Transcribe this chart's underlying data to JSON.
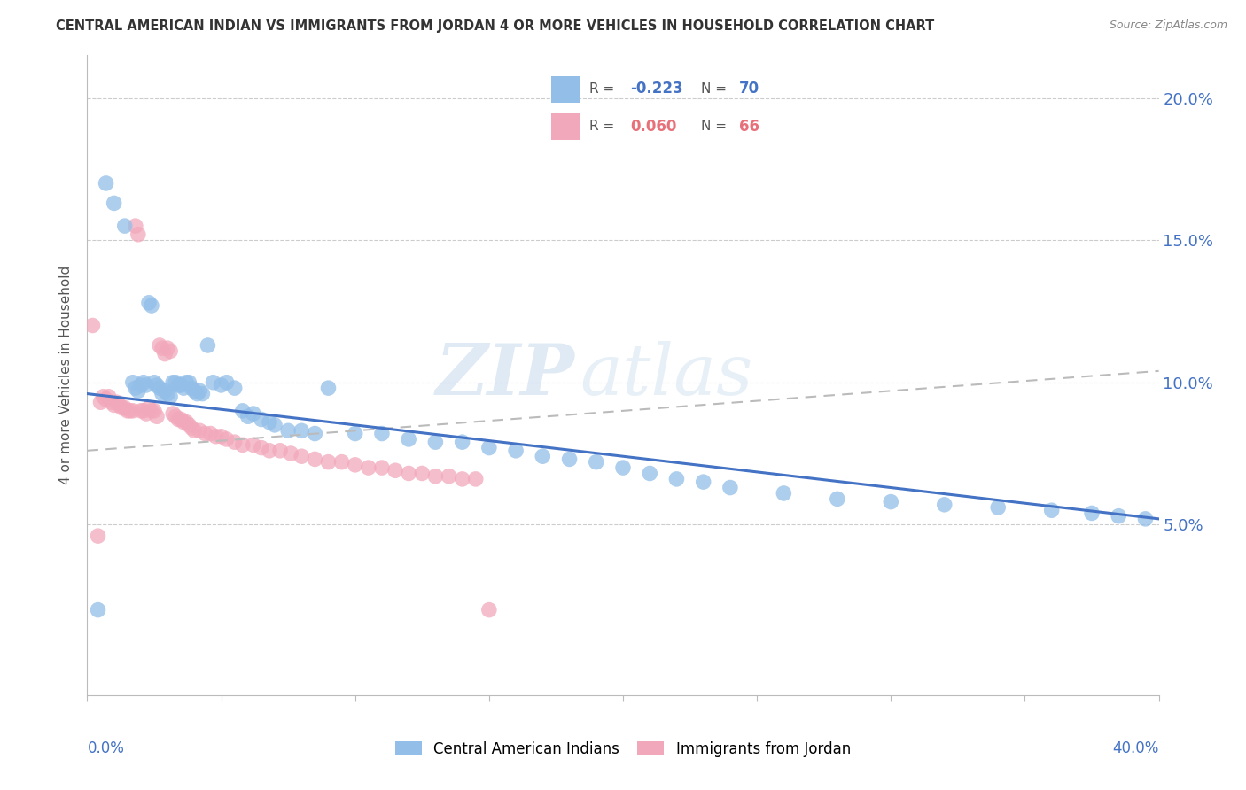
{
  "title": "CENTRAL AMERICAN INDIAN VS IMMIGRANTS FROM JORDAN 4 OR MORE VEHICLES IN HOUSEHOLD CORRELATION CHART",
  "source": "Source: ZipAtlas.com",
  "ylabel": "4 or more Vehicles in Household",
  "xlim": [
    0.0,
    0.4
  ],
  "ylim": [
    -0.01,
    0.215
  ],
  "yticks": [
    0.05,
    0.1,
    0.15,
    0.2
  ],
  "ytick_labels": [
    "5.0%",
    "10.0%",
    "15.0%",
    "20.0%"
  ],
  "xticks": [
    0.0,
    0.05,
    0.1,
    0.15,
    0.2,
    0.25,
    0.3,
    0.35,
    0.4
  ],
  "legend_label1": "Central American Indians",
  "legend_label2": "Immigrants from Jordan",
  "watermark": "ZIPatlas",
  "blue_color": "#92BEE8",
  "pink_color": "#F2A8BB",
  "blue_line_color": "#4472C4",
  "pink_line_color": "#E8707A",
  "gray_dash_color": "#BBBBBB",
  "blue_trend_x": [
    0.0,
    0.4
  ],
  "blue_trend_y": [
    0.096,
    0.052
  ],
  "pink_trend_x": [
    0.0,
    0.4
  ],
  "pink_trend_y": [
    0.076,
    0.104
  ],
  "blue_points_x": [
    0.004,
    0.007,
    0.01,
    0.014,
    0.017,
    0.018,
    0.019,
    0.02,
    0.021,
    0.022,
    0.023,
    0.024,
    0.025,
    0.026,
    0.027,
    0.028,
    0.029,
    0.03,
    0.031,
    0.032,
    0.033,
    0.034,
    0.035,
    0.036,
    0.037,
    0.038,
    0.039,
    0.04,
    0.041,
    0.042,
    0.043,
    0.045,
    0.047,
    0.05,
    0.052,
    0.055,
    0.058,
    0.06,
    0.062,
    0.065,
    0.068,
    0.07,
    0.075,
    0.08,
    0.085,
    0.09,
    0.1,
    0.11,
    0.12,
    0.13,
    0.14,
    0.15,
    0.16,
    0.17,
    0.18,
    0.19,
    0.2,
    0.21,
    0.22,
    0.23,
    0.24,
    0.26,
    0.28,
    0.3,
    0.32,
    0.34,
    0.36,
    0.375,
    0.385,
    0.395
  ],
  "blue_points_y": [
    0.02,
    0.17,
    0.163,
    0.155,
    0.1,
    0.098,
    0.097,
    0.099,
    0.1,
    0.099,
    0.128,
    0.127,
    0.1,
    0.099,
    0.098,
    0.096,
    0.097,
    0.096,
    0.095,
    0.1,
    0.1,
    0.099,
    0.099,
    0.098,
    0.1,
    0.1,
    0.098,
    0.097,
    0.096,
    0.097,
    0.096,
    0.113,
    0.1,
    0.099,
    0.1,
    0.098,
    0.09,
    0.088,
    0.089,
    0.087,
    0.086,
    0.085,
    0.083,
    0.083,
    0.082,
    0.098,
    0.082,
    0.082,
    0.08,
    0.079,
    0.079,
    0.077,
    0.076,
    0.074,
    0.073,
    0.072,
    0.07,
    0.068,
    0.066,
    0.065,
    0.063,
    0.061,
    0.059,
    0.058,
    0.057,
    0.056,
    0.055,
    0.054,
    0.053,
    0.052
  ],
  "pink_points_x": [
    0.002,
    0.004,
    0.005,
    0.006,
    0.007,
    0.008,
    0.009,
    0.01,
    0.011,
    0.012,
    0.013,
    0.014,
    0.015,
    0.016,
    0.017,
    0.018,
    0.019,
    0.02,
    0.021,
    0.022,
    0.023,
    0.024,
    0.025,
    0.026,
    0.027,
    0.028,
    0.029,
    0.03,
    0.031,
    0.032,
    0.033,
    0.034,
    0.035,
    0.036,
    0.037,
    0.038,
    0.039,
    0.04,
    0.042,
    0.044,
    0.046,
    0.048,
    0.05,
    0.052,
    0.055,
    0.058,
    0.062,
    0.065,
    0.068,
    0.072,
    0.076,
    0.08,
    0.085,
    0.09,
    0.095,
    0.1,
    0.105,
    0.11,
    0.115,
    0.12,
    0.125,
    0.13,
    0.135,
    0.14,
    0.145,
    0.15
  ],
  "pink_points_y": [
    0.12,
    0.046,
    0.093,
    0.095,
    0.094,
    0.095,
    0.093,
    0.092,
    0.093,
    0.092,
    0.091,
    0.091,
    0.09,
    0.09,
    0.09,
    0.155,
    0.152,
    0.09,
    0.09,
    0.089,
    0.091,
    0.09,
    0.09,
    0.088,
    0.113,
    0.112,
    0.11,
    0.112,
    0.111,
    0.089,
    0.088,
    0.087,
    0.087,
    0.086,
    0.086,
    0.085,
    0.084,
    0.083,
    0.083,
    0.082,
    0.082,
    0.081,
    0.081,
    0.08,
    0.079,
    0.078,
    0.078,
    0.077,
    0.076,
    0.076,
    0.075,
    0.074,
    0.073,
    0.072,
    0.072,
    0.071,
    0.07,
    0.07,
    0.069,
    0.068,
    0.068,
    0.067,
    0.067,
    0.066,
    0.066,
    0.02
  ]
}
